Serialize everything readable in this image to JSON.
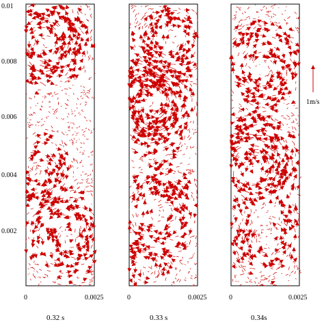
{
  "chart_data": {
    "type": "vector-field",
    "vector_color": "#cc0000",
    "y_ticks": [
      "0.01",
      "0.008",
      "0.006",
      "0.004",
      "0.002",
      "0"
    ],
    "ylim": [
      0,
      0.01
    ],
    "xlim": [
      0,
      0.0025
    ],
    "x_tick_labels": [
      "0",
      "0.0025"
    ],
    "scale": {
      "label": "1m/s",
      "magnitude": 1
    },
    "panels": [
      {
        "time_label": "0.32 s",
        "vortices": [
          {
            "x": 0.0007,
            "y": 0.0086,
            "strength": 1.0,
            "radius": 0.0011
          },
          {
            "x": 0.0004,
            "y": 0.0041,
            "strength": -0.8,
            "radius": 0.001
          },
          {
            "x": 0.0016,
            "y": 0.0018,
            "strength": 0.7,
            "radius": 0.0012
          }
        ]
      },
      {
        "time_label": "0.33 s",
        "vortices": [
          {
            "x": 0.0007,
            "y": 0.0064,
            "strength": 1.1,
            "radius": 0.0012
          },
          {
            "x": 0.0016,
            "y": 0.0087,
            "strength": -0.7,
            "radius": 0.0011
          },
          {
            "x": 0.0012,
            "y": 0.0026,
            "strength": -0.7,
            "radius": 0.0012
          },
          {
            "x": 0.0007,
            "y": 0.0006,
            "strength": 0.6,
            "radius": 0.0008
          }
        ]
      },
      {
        "time_label": "0.34s",
        "vortices": [
          {
            "x": 0.0009,
            "y": 0.0042,
            "strength": 1.1,
            "radius": 0.0012
          },
          {
            "x": 0.0011,
            "y": 0.0078,
            "strength": -0.7,
            "radius": 0.0012
          },
          {
            "x": 0.0013,
            "y": 0.0017,
            "strength": 0.6,
            "radius": 0.0012
          }
        ]
      }
    ]
  }
}
